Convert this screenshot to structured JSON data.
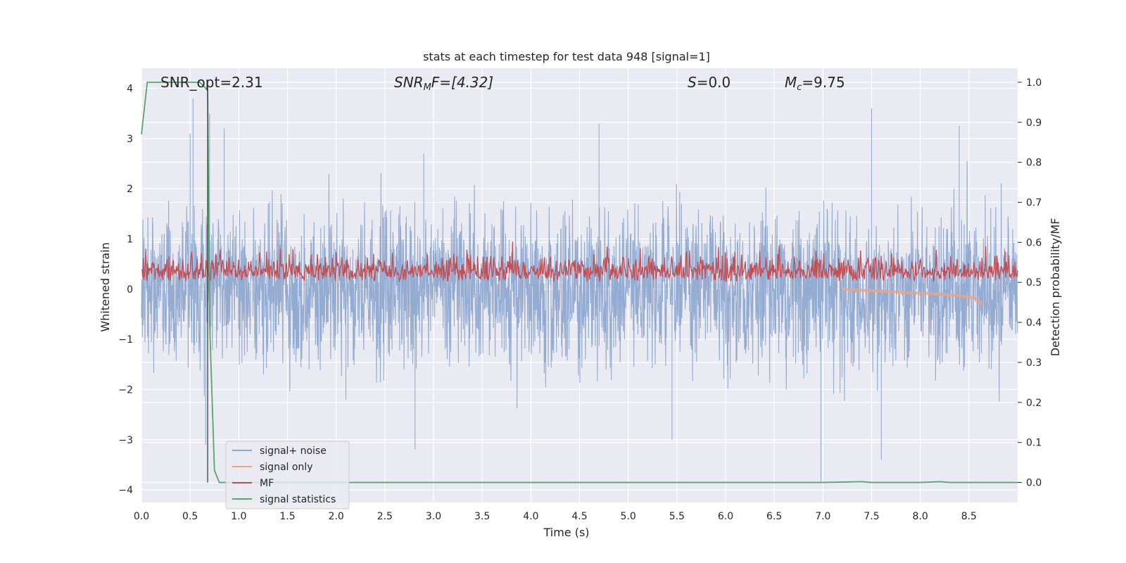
{
  "chart_data": {
    "type": "line",
    "title": "stats at each timestep for test data 948 [signal=1]",
    "xlabel": "Time (s)",
    "ylabel_left": "Whitened strain",
    "ylabel_right": "Detection probability/MF",
    "xlim": [
      0,
      9.0
    ],
    "ylim_left": [
      -4.25,
      4.4
    ],
    "ylim_right": [
      -0.05,
      1.035
    ],
    "x_ticks": [
      "0.0",
      "0.5",
      "1.0",
      "1.5",
      "2.0",
      "2.5",
      "3.0",
      "3.5",
      "4.0",
      "4.5",
      "5.0",
      "5.5",
      "6.0",
      "6.5",
      "7.0",
      "7.5",
      "8.0",
      "8.5"
    ],
    "y_ticks_left": [
      "4",
      "3",
      "2",
      "1",
      "0",
      "−1",
      "−2",
      "−3",
      "−4"
    ],
    "y_ticks_right": [
      "1.0",
      "0.9",
      "0.8",
      "0.7",
      "0.6",
      "0.5",
      "0.4",
      "0.3",
      "0.2",
      "0.1",
      "0.0"
    ],
    "grid": true,
    "legend_position": "bottom-left",
    "annotations": {
      "snr_opt": "SNR_opt=2.31",
      "snr_mf_prefix": "SNR",
      "snr_mf_sub": "M",
      "snr_mf_suffix": "F=[4.32]",
      "s_var": "S",
      "s_value": "=0.0",
      "mc_var": "M",
      "mc_sub": "c",
      "mc_value": "=9.75"
    },
    "colors": {
      "background": "#eaeaf2",
      "grid": "#ffffff",
      "noise": "#8fa8d0",
      "signal": "#e8a689",
      "mf": "#c44e52",
      "stats": "#55a868",
      "marker": "#333333"
    },
    "series": [
      {
        "name": "signal+ noise",
        "axis": "left",
        "description_range": [
          -3.4,
          3.6
        ],
        "spikes": [
          [
            0.5,
            3.1
          ],
          [
            0.53,
            3.8
          ],
          [
            0.7,
            3.5
          ],
          [
            0.85,
            3.2
          ],
          [
            2.9,
            2.7
          ],
          [
            4.7,
            3.3
          ],
          [
            7.5,
            3.6
          ],
          [
            8.4,
            3.25
          ],
          [
            2.81,
            -3.2
          ],
          [
            6.98,
            -3.85
          ],
          [
            7.6,
            -3.4
          ],
          [
            0.66,
            -3.1
          ],
          [
            2.1,
            -2.2
          ],
          [
            5.45,
            -3.0
          ]
        ]
      },
      {
        "name": "signal only",
        "axis": "left",
        "x": [
          7.2,
          7.5,
          7.8,
          8.0,
          8.2,
          8.4,
          8.55,
          8.65
        ],
        "y": [
          0.0,
          -0.03,
          -0.06,
          -0.08,
          -0.1,
          -0.13,
          -0.17,
          -0.3
        ]
      },
      {
        "name": "MF",
        "axis": "right",
        "range": [
          0.5,
          0.62
        ]
      },
      {
        "name": "signal statistics",
        "axis": "right",
        "x": [
          0.0,
          0.06,
          0.1,
          0.2,
          0.4,
          0.6,
          0.68,
          0.7,
          0.75,
          0.8,
          0.9,
          2.0,
          4.0,
          6.0,
          7.0,
          7.4,
          7.5,
          8.0,
          8.2,
          8.3,
          8.5,
          8.8,
          9.0
        ],
        "y": [
          0.87,
          1.0,
          1.0,
          1.0,
          1.0,
          1.0,
          0.98,
          0.4,
          0.03,
          0.0,
          0.0,
          0.0,
          0.0,
          0.0,
          0.0,
          0.002,
          0.0,
          0.0,
          0.002,
          0.0,
          0.0,
          0.0,
          0.0
        ]
      }
    ],
    "marker_x": 0.68,
    "legend": [
      "signal+ noise",
      "signal only",
      "MF",
      "signal statistics"
    ]
  }
}
